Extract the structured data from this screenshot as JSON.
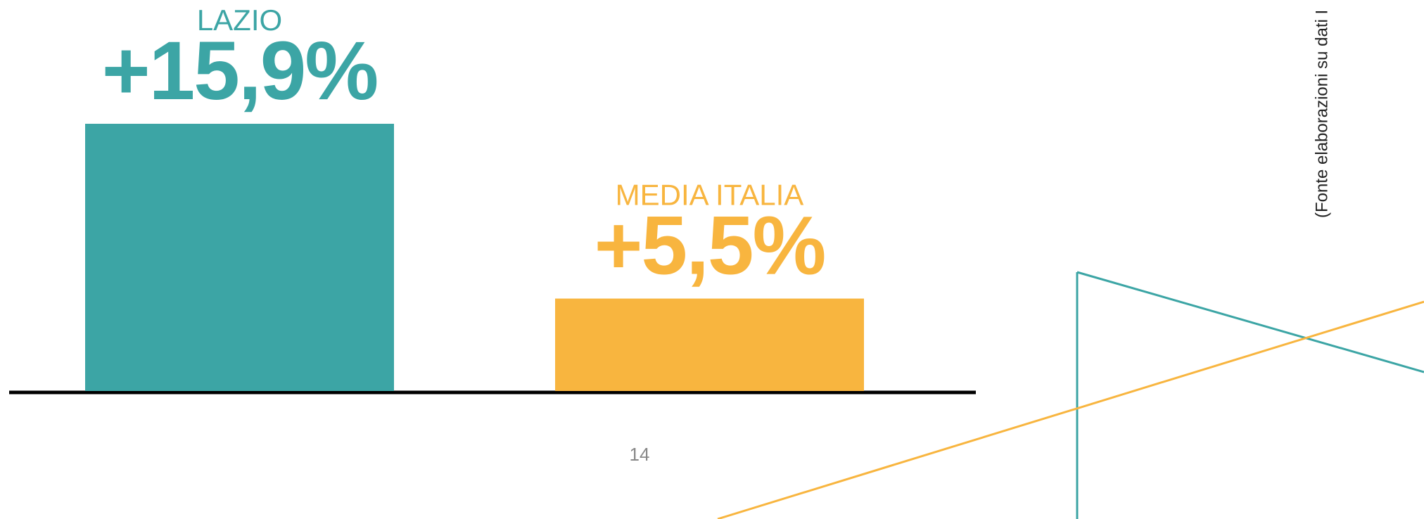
{
  "chart_data": {
    "type": "bar",
    "categories": [
      "LAZIO",
      "MEDIA ITALIA"
    ],
    "values": [
      15.9,
      5.5
    ],
    "value_labels": [
      "+15,9%",
      "+5,5%"
    ],
    "colors": [
      "#3ca5a5",
      "#f8b53f"
    ],
    "source": "(Fonte elaborazioni su dati I"
  },
  "page_number": "14"
}
